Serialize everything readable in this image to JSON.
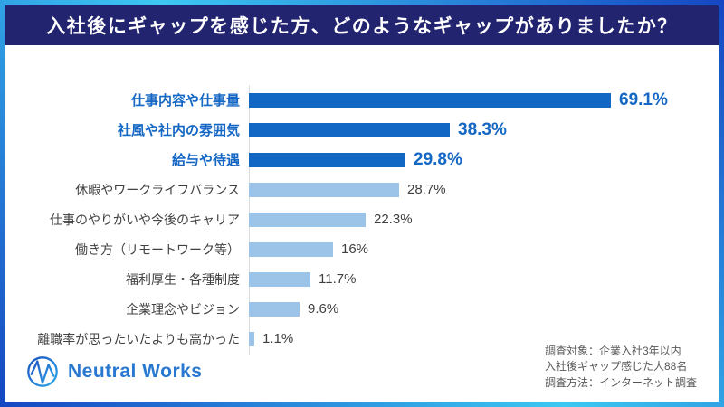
{
  "header": {
    "title": "入社後にギャップを感じた方、どのようなギャップがありましたか？",
    "bg_color": "#232470",
    "text_color": "#FFFFFF"
  },
  "frame": {
    "border_colors": [
      "#1546C2",
      "#3CC8F2"
    ]
  },
  "chart_data": {
    "type": "bar",
    "orientation": "horizontal",
    "title": "入社後にギャップを感じた方、どのようなギャップがありましたか？",
    "xlabel": "",
    "ylabel": "",
    "xlim": [
      0,
      72
    ],
    "grid": false,
    "legend": "none",
    "categories": [
      "仕事内容や仕事量",
      "社風や社内の雰囲気",
      "給与や待遇",
      "休暇やワークライフバランス",
      "仕事のやりがいや今後のキャリア",
      "働き方（リモートワーク等）",
      "福利厚生・各種制度",
      "企業理念やビジョン",
      "離職率が思ったいたよりも高かった"
    ],
    "values": [
      69.1,
      38.3,
      29.8,
      28.7,
      22.3,
      16,
      11.7,
      9.6,
      1.1
    ],
    "value_labels": [
      "69.1%",
      "38.3%",
      "29.8%",
      "28.7%",
      "22.3%",
      "16%",
      "11.7%",
      "9.6%",
      "1.1%"
    ],
    "emphasized": [
      true,
      true,
      true,
      false,
      false,
      false,
      false,
      false,
      false
    ],
    "colors": {
      "emphasis_bar": "#1167C3",
      "normal_bar": "#9CC3E8",
      "emphasis_text": "#1467C4",
      "normal_label_text": "#404040",
      "normal_value_text": "#3F3F3F"
    }
  },
  "footer": {
    "logo_text": "Neutral Works",
    "survey_lines": [
      "調査対象：企業入社3年以内",
      "入社後ギャップ感じた人88名",
      "調査方法：インターネット調査"
    ]
  }
}
